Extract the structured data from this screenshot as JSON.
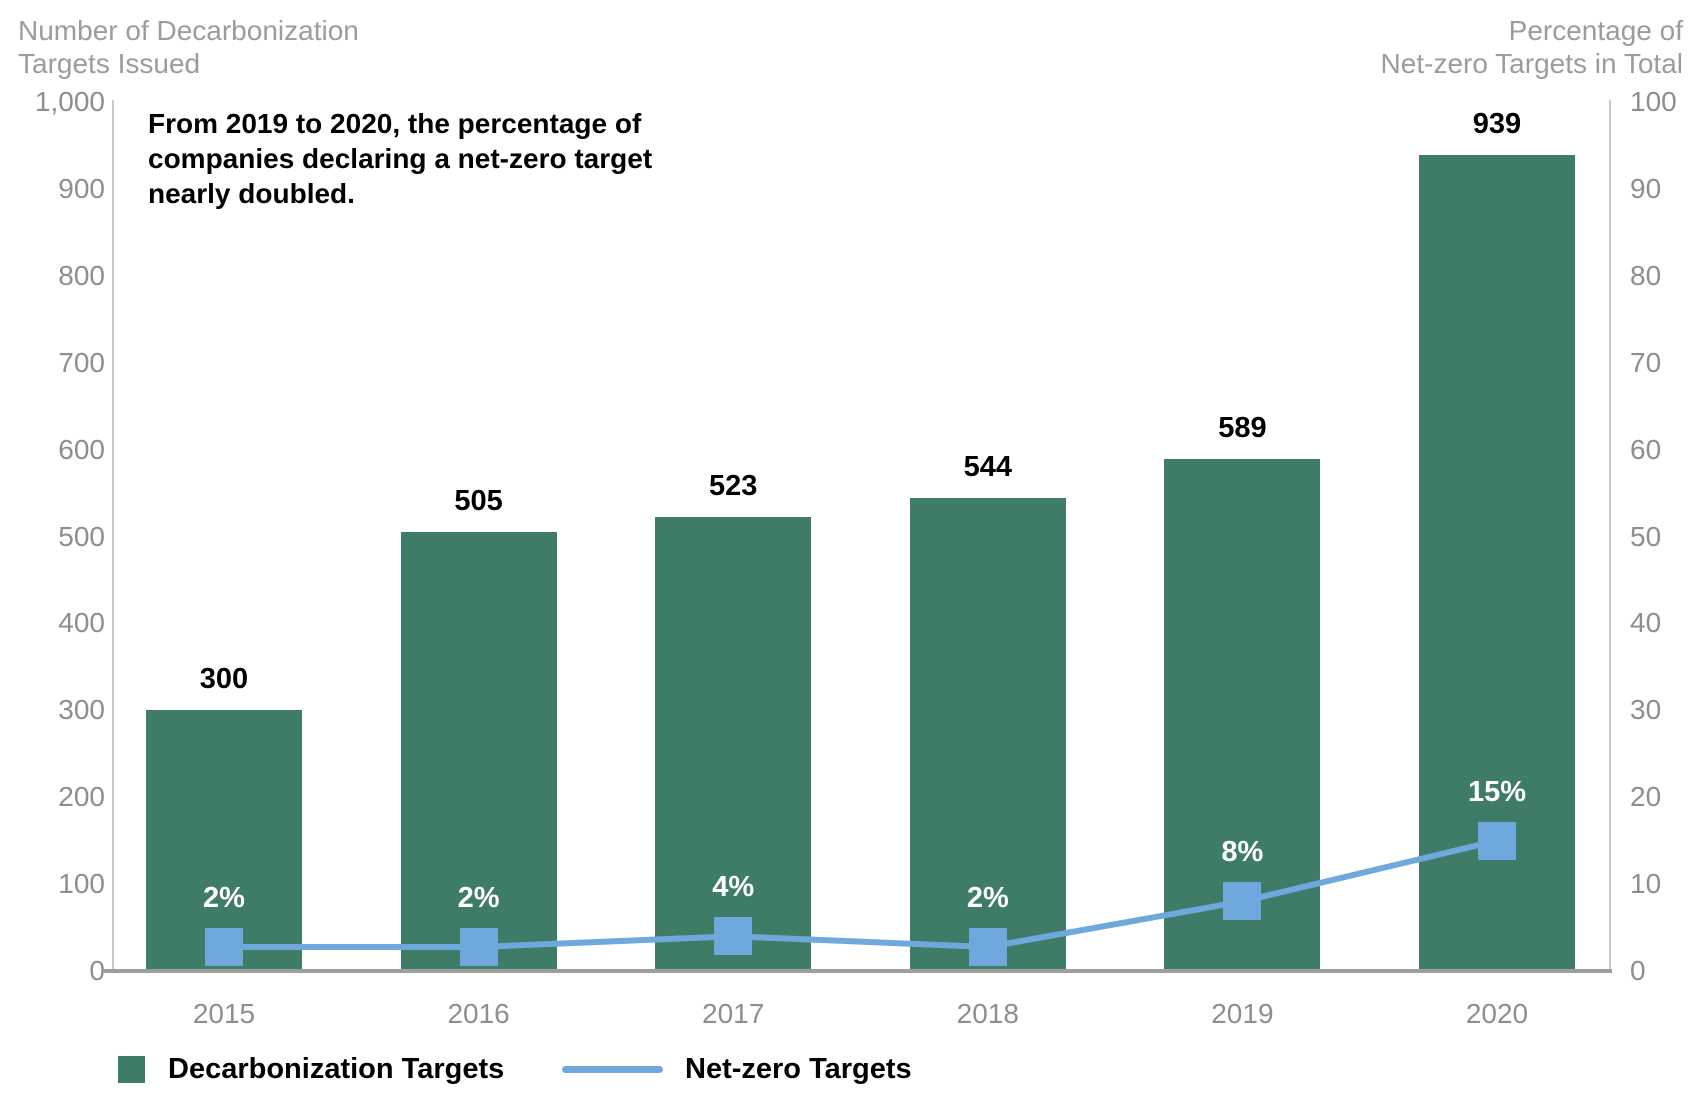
{
  "page": {
    "background": "#FFFFFF"
  },
  "chart_data": {
    "type": "bar-line-combo",
    "grid": "off",
    "legend_position": "bottom-left",
    "categories": [
      "2015",
      "2016",
      "2017",
      "2018",
      "2019",
      "2020"
    ],
    "series": [
      {
        "name": "Decarbonization Targets",
        "type": "bar",
        "axis": "left",
        "color": "#3E7C68",
        "values": [
          300,
          505,
          523,
          544,
          589,
          939
        ],
        "data_labels": [
          "300",
          "505",
          "523",
          "544",
          "589",
          "939"
        ]
      },
      {
        "name": "Net-zero Targets",
        "type": "line",
        "axis": "right",
        "color": "#6FA8DC",
        "marker": "square",
        "values": [
          2,
          2,
          4,
          2,
          8,
          15
        ],
        "data_labels": [
          "2%",
          "2%",
          "4%",
          "2%",
          "8%",
          "15%"
        ]
      }
    ],
    "left_axis": {
      "title_lines": [
        "Number of Decarbonization",
        "Targets Issued"
      ],
      "min": 0,
      "max": 1000,
      "step": 100,
      "tick_labels": [
        "0",
        "100",
        "200",
        "300",
        "400",
        "500",
        "600",
        "700",
        "800",
        "900",
        "1,000"
      ]
    },
    "right_axis": {
      "title_lines": [
        "Percentage of",
        "Net-zero Targets in Total"
      ],
      "min": 0,
      "max": 100,
      "step": 10,
      "tick_labels": [
        "0",
        "10",
        "20",
        "30",
        "40",
        "50",
        "60",
        "70",
        "80",
        "90",
        "100"
      ]
    },
    "annotation_lines": [
      "From 2019 to 2020, the percentage of",
      "companies declaring a net-zero target",
      "nearly doubled."
    ],
    "legend": [
      {
        "label": "Decarbonization Targets",
        "swatch": "square",
        "color": "#3E7C68"
      },
      {
        "label": "Net-zero Targets",
        "swatch": "line",
        "color": "#6FA8DC"
      }
    ],
    "colors": {
      "bar_green": "#3E7C68",
      "line_blue": "#6FA8DC",
      "tick_gray": "#8E8E8E",
      "axis_title_gray": "#9C9C9C",
      "axis_line_gray": "#C9C9C9",
      "baseline_gray": "#9E9E9E",
      "value_label": "#000000",
      "percent_label": "#FFFFFF"
    }
  }
}
